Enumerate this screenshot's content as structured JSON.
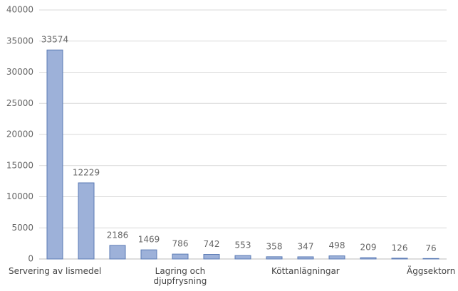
{
  "chart_data": {
    "type": "bar",
    "categories": [
      "Servering av lismedel",
      null,
      null,
      null,
      "Lagring och\ndjupfrysning",
      null,
      null,
      null,
      "Köttanlägningar",
      null,
      null,
      null,
      "Äggsektorn"
    ],
    "values": [
      33574,
      12229,
      2186,
      1469,
      786,
      742,
      553,
      358,
      347,
      498,
      209,
      126,
      76
    ],
    "color": "#9db1d9",
    "ylim": [
      0,
      40000
    ],
    "yticks": [
      0,
      5000,
      10000,
      15000,
      20000,
      25000,
      30000,
      35000,
      40000
    ],
    "grid": true
  }
}
